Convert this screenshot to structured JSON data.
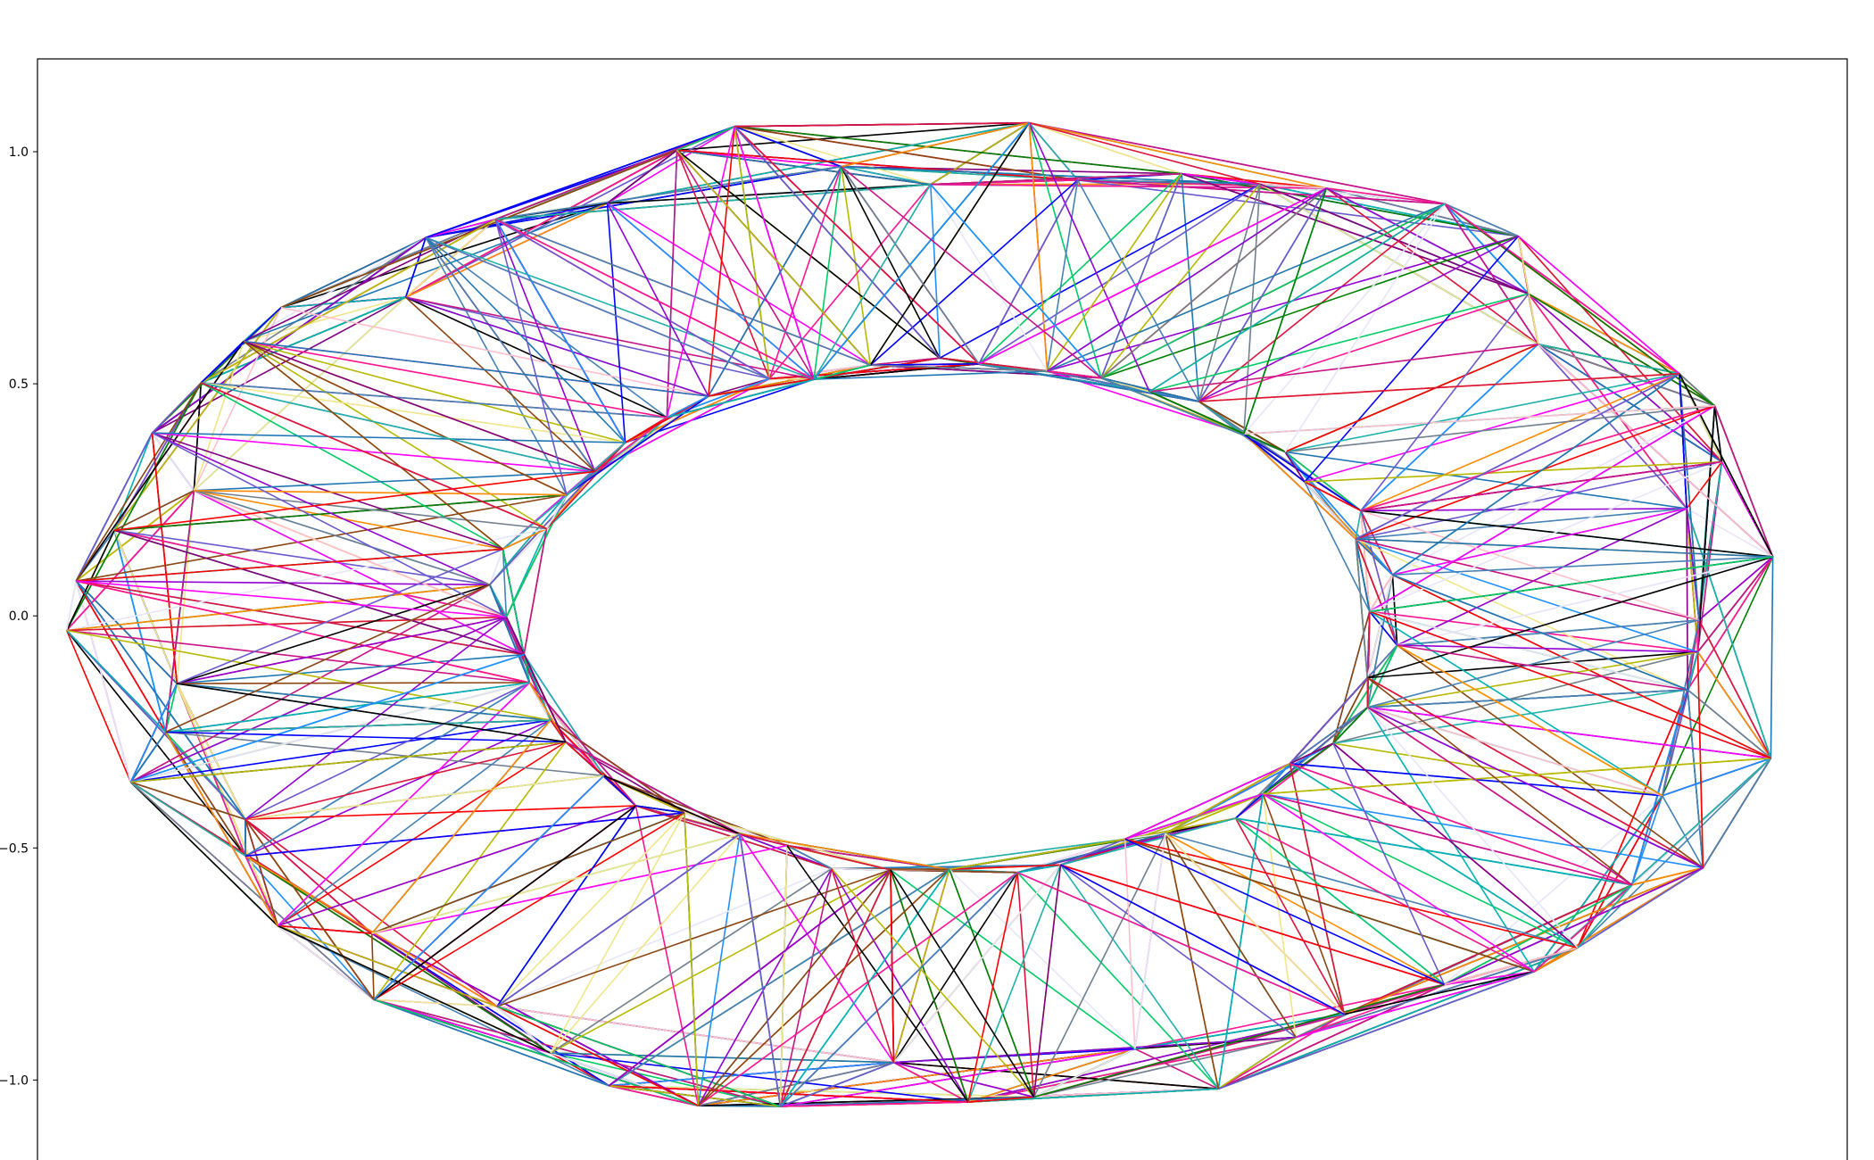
{
  "chart_data": {
    "type": "line",
    "title": "",
    "xlabel": "",
    "ylabel": "",
    "description_of_marks": "many short multicolored line segments connecting points on two concentric elliptical rings",
    "xlim": [
      -1.6,
      1.6
    ],
    "ylim": [
      -1.18,
      1.2
    ],
    "y_ticks": [
      {
        "value": 1.0,
        "label": "1.0"
      },
      {
        "value": 0.5,
        "label": "0.5"
      },
      {
        "value": 0.0,
        "label": "0.0"
      },
      {
        "value": -0.5,
        "label": "−0.5"
      },
      {
        "value": -1.0,
        "label": "−1.0"
      }
    ],
    "x_ticks": [],
    "grid": false,
    "legend": "none",
    "rings": {
      "outer": {
        "rx": 1.45,
        "ry": 1.02,
        "cy": -0.01,
        "jitter": 0.08,
        "points": 60
      },
      "inner": {
        "rx": 0.78,
        "ry": 0.55,
        "cy": 0.0,
        "jitter": 0.04,
        "points": 48
      }
    },
    "edges_per_family": {
      "outer_ring": 900,
      "inner_ring": 700,
      "spokes": 500
    },
    "palette": [
      "#1f77b4",
      "#ff0000",
      "#008000",
      "#0000ff",
      "#ff00ff",
      "#00b3b3",
      "#800080",
      "#ff8c00",
      "#9400d3",
      "#00cc66",
      "#dc143c",
      "#4682b4",
      "#c71585",
      "#6a5acd",
      "#000000",
      "#b8b800",
      "#20b2aa",
      "#ff1493",
      "#8b4513",
      "#708090",
      "#e6e6fa",
      "#f0e68c",
      "#ffc0cb",
      "#1e90ff"
    ]
  }
}
